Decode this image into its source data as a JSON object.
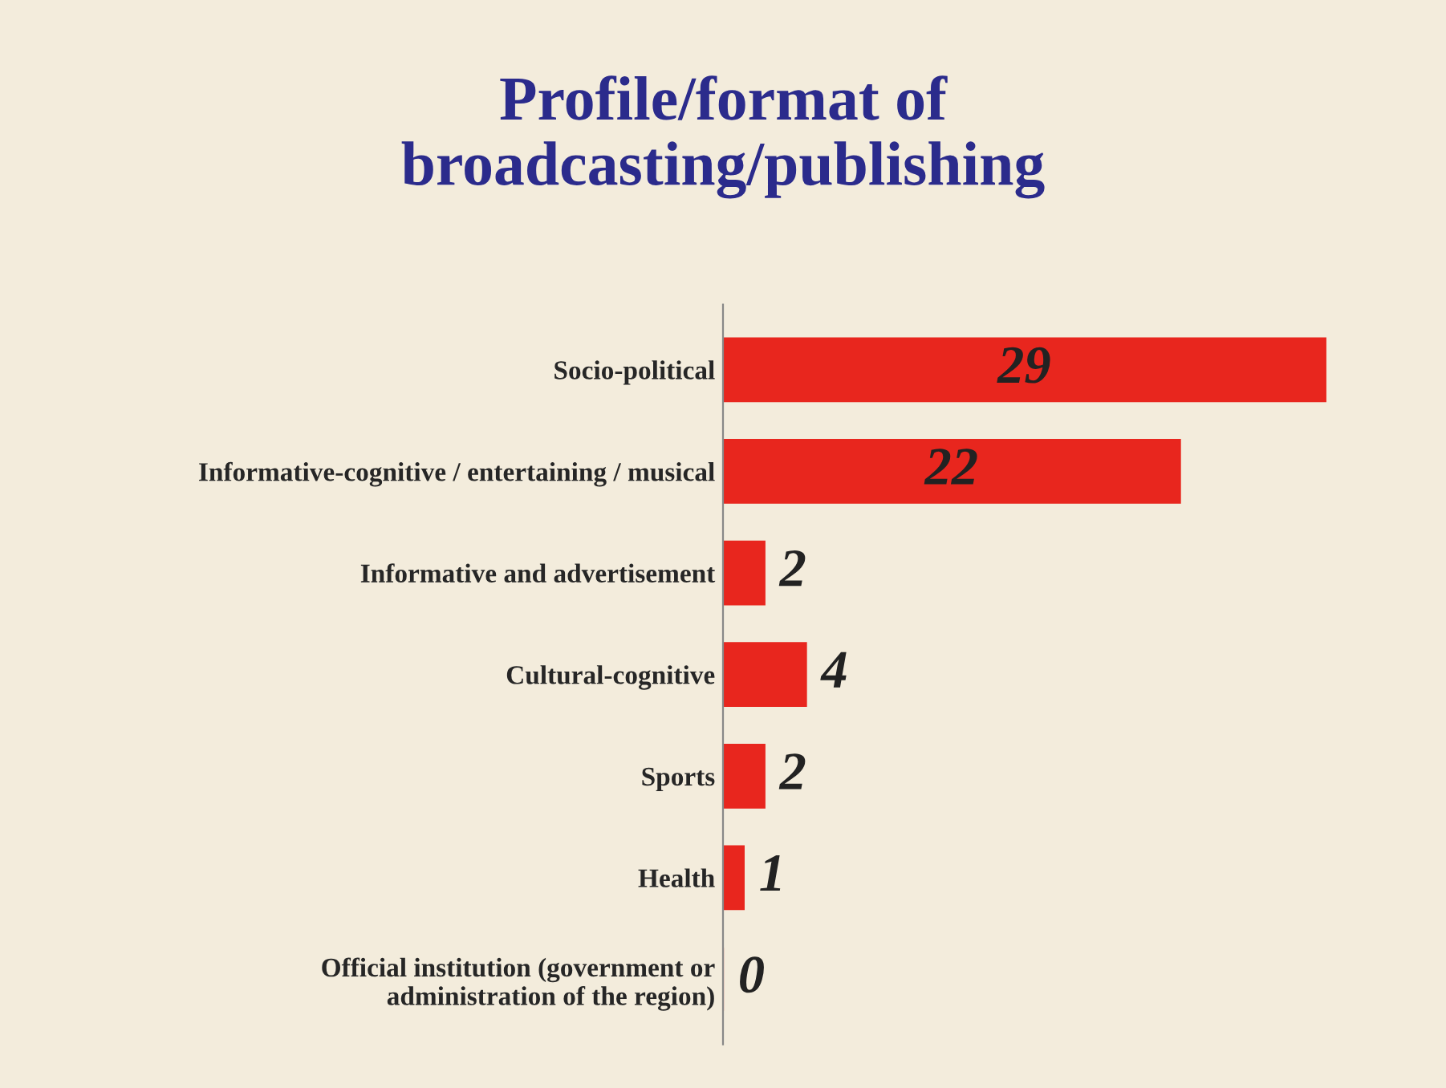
{
  "chart_data": {
    "type": "bar",
    "orientation": "horizontal",
    "title": "Profile/format of\nbroadcasting/publishing",
    "categories": [
      "Socio-political",
      "Informative-cognitive / entertaining / musical",
      "Informative and advertisement",
      "Cultural-cognitive",
      "Sports",
      "Health",
      "Official institution (government or\nadministration of the region)"
    ],
    "values": [
      29,
      22,
      2,
      4,
      2,
      1,
      0
    ],
    "color": "#e8261e",
    "data_labels": true,
    "tick_labels": "y",
    "grid": false,
    "legend": false
  }
}
